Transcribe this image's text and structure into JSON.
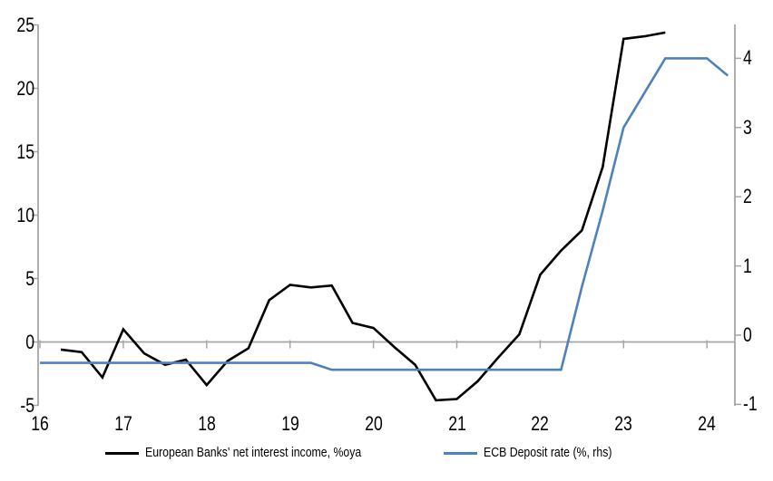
{
  "chart_data": {
    "type": "line",
    "title": "",
    "x_axis": {
      "tick_labels": [
        "16",
        "17",
        "18",
        "19",
        "20",
        "21",
        "22",
        "23",
        "24"
      ],
      "tick_values": [
        16,
        17,
        18,
        19,
        20,
        21,
        22,
        23,
        24
      ],
      "range": [
        15.98,
        24.35
      ]
    },
    "left_axis": {
      "tick_values": [
        -5,
        0,
        5,
        10,
        15,
        20,
        25
      ],
      "range": [
        -5,
        25
      ]
    },
    "right_axis": {
      "tick_values": [
        -1,
        0,
        1,
        2,
        3,
        4
      ],
      "range": [
        -1.05,
        4.45
      ]
    },
    "zero_gridline": true,
    "legend_position": "bottom",
    "series": [
      {
        "name": "European Banks' net interest income, %oya",
        "axis": "left",
        "color": "#000000",
        "x": [
          16.25,
          16.5,
          16.75,
          17.0,
          17.25,
          17.5,
          17.75,
          18.0,
          18.25,
          18.5,
          18.75,
          19.0,
          19.25,
          19.5,
          19.75,
          20.0,
          20.25,
          20.5,
          20.75,
          21.0,
          21.25,
          21.5,
          21.75,
          22.0,
          22.25,
          22.5,
          22.75,
          23.0,
          23.25,
          23.5
        ],
        "values": [
          -0.6,
          -0.8,
          -2.8,
          1.0,
          -0.9,
          -1.8,
          -1.4,
          -3.4,
          -1.5,
          -0.5,
          3.3,
          4.5,
          4.3,
          4.45,
          1.5,
          1.1,
          -0.4,
          -1.8,
          -4.6,
          -4.5,
          -3.1,
          -1.2,
          0.6,
          5.3,
          7.2,
          8.8,
          13.8,
          23.9,
          24.1,
          24.4
        ]
      },
      {
        "name": "ECB Deposit rate (%, rhs)",
        "axis": "right",
        "color": "#4F81BD",
        "x": [
          16.0,
          16.25,
          16.5,
          16.75,
          17.0,
          17.25,
          17.5,
          17.75,
          18.0,
          18.25,
          18.5,
          18.75,
          19.0,
          19.25,
          19.5,
          19.75,
          20.0,
          20.25,
          20.5,
          20.75,
          21.0,
          21.25,
          21.5,
          21.75,
          22.0,
          22.25,
          22.5,
          22.75,
          23.0,
          23.25,
          23.5,
          23.75,
          24.0,
          24.25
        ],
        "values": [
          -0.4,
          -0.4,
          -0.4,
          -0.4,
          -0.4,
          -0.4,
          -0.4,
          -0.4,
          -0.4,
          -0.4,
          -0.4,
          -0.4,
          -0.4,
          -0.4,
          -0.5,
          -0.5,
          -0.5,
          -0.5,
          -0.5,
          -0.5,
          -0.5,
          -0.5,
          -0.5,
          -0.5,
          -0.5,
          -0.5,
          0.7,
          1.8,
          3.0,
          3.5,
          4.0,
          4.0,
          4.0,
          3.75
        ]
      }
    ]
  },
  "colors": {
    "axis": "#A6A6A6",
    "gridline": "#A6A6A6",
    "background": "#FFFFFF",
    "text": "#000000"
  }
}
